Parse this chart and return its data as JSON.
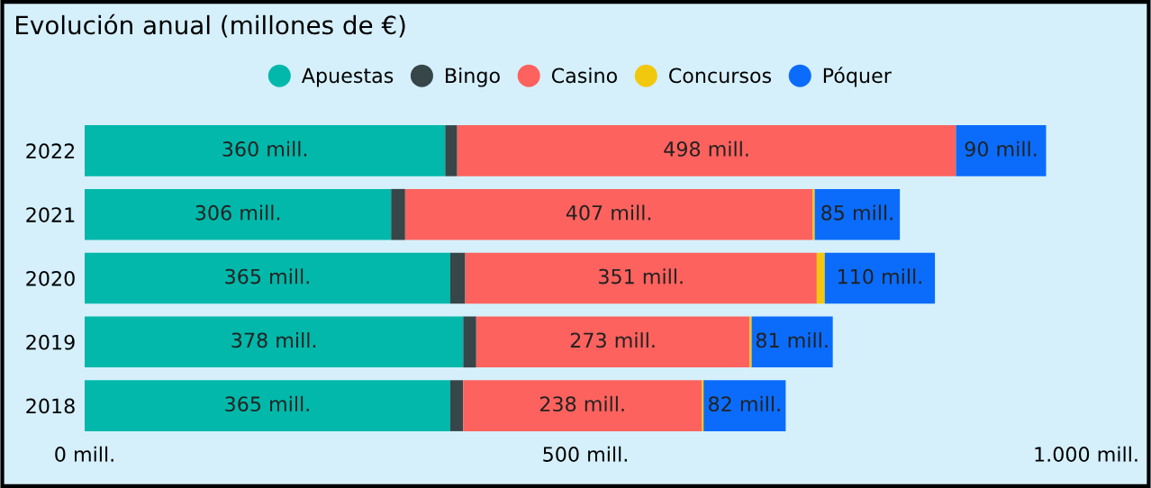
{
  "chart_data": {
    "type": "bar",
    "title": "Evolución anual (millones de €)",
    "orientation": "horizontal",
    "stacked": true,
    "categories": [
      "2022",
      "2021",
      "2020",
      "2019",
      "2018"
    ],
    "series": [
      {
        "name": "Apuestas",
        "color": "#01b8aa",
        "values": [
          360,
          306,
          365,
          378,
          365
        ],
        "value_labels": [
          "360 mill.",
          "306 mill.",
          "365 mill.",
          "378 mill.",
          "365 mill."
        ]
      },
      {
        "name": "Bingo",
        "color": "#374649",
        "values": [
          12,
          14,
          15,
          13,
          13
        ]
      },
      {
        "name": "Casino",
        "color": "#fd625e",
        "values": [
          498,
          407,
          351,
          273,
          238
        ],
        "value_labels": [
          "498 mill.",
          "407 mill.",
          "351 mill.",
          "273 mill.",
          "238 mill."
        ]
      },
      {
        "name": "Concursos",
        "color": "#f2c80f",
        "values": [
          null,
          2,
          8,
          2,
          2
        ]
      },
      {
        "name": "Póquer",
        "color": "#0b6cfc",
        "values": [
          90,
          85,
          110,
          81,
          82
        ],
        "value_labels": [
          "90 mill.",
          "85 mill.",
          "110 mill.",
          "81 mill.",
          "82 mill."
        ]
      }
    ],
    "xlim": [
      0,
      1000
    ],
    "xticks": [
      {
        "value": 0,
        "label": "0 mill."
      },
      {
        "value": 500,
        "label": "500 mill."
      },
      {
        "value": 1000,
        "label": "1.000 mill."
      }
    ],
    "grid": false,
    "legend": "top"
  }
}
